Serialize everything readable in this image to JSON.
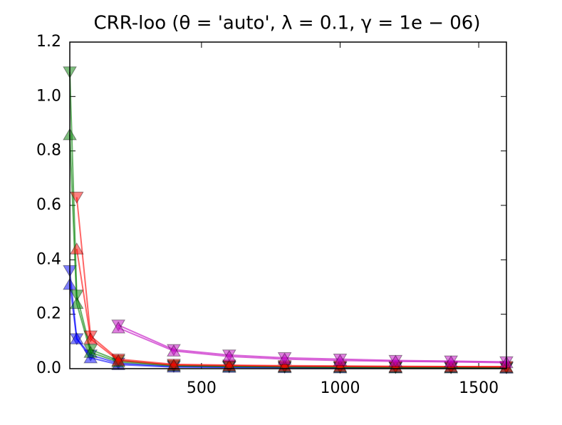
{
  "chart_data": {
    "type": "line",
    "title": "CRR-loo (θ = 'auto', λ = 0.1, γ = 1e − 06)",
    "x": [
      25,
      50,
      100,
      200,
      400,
      600,
      800,
      1000,
      1200,
      1400,
      1600
    ],
    "xlim": [
      25,
      1600
    ],
    "xticks": [
      500,
      1000,
      1500
    ],
    "ylim": [
      0,
      1.2
    ],
    "yticks": [
      {
        "value": 0,
        "label": "0.0"
      },
      0.2,
      0.4,
      0.6,
      0.8,
      {
        "value": 1,
        "label": "1.0"
      },
      1.2
    ],
    "series": [
      {
        "color": "#0000ff",
        "marker": "v",
        "values": [
          0.36,
          0.11,
          0.05,
          0.02,
          0.008,
          0.006,
          0.005,
          0.004,
          0.004,
          0.003,
          0.003
        ]
      },
      {
        "color": "#0000ff",
        "marker": "^",
        "values": [
          0.31,
          0.11,
          0.04,
          0.015,
          0.006,
          0.005,
          0.004,
          0.003,
          0.003,
          0.003,
          0.002
        ]
      },
      {
        "color": "#008000",
        "marker": "v",
        "values": [
          1.09,
          0.27,
          0.07,
          0.03,
          0.012,
          0.009,
          0.007,
          0.006,
          0.005,
          0.005,
          0.004
        ]
      },
      {
        "color": "#008000",
        "marker": "^",
        "values": [
          0.86,
          0.24,
          0.06,
          0.025,
          0.01,
          0.008,
          0.006,
          0.005,
          0.004,
          0.004,
          0.004
        ]
      },
      {
        "color": "#ff0000",
        "marker": "v",
        "values": [
          null,
          0.63,
          0.12,
          0.035,
          0.016,
          0.013,
          0.011,
          0.01,
          0.009,
          0.008,
          0.008
        ]
      },
      {
        "color": "#ff0000",
        "marker": "^",
        "values": [
          null,
          0.44,
          0.11,
          0.03,
          0.013,
          0.011,
          0.009,
          0.008,
          0.007,
          0.007,
          0.006
        ]
      },
      {
        "color": "#bf00bf",
        "marker": "v",
        "values": [
          null,
          null,
          null,
          0.16,
          0.07,
          0.05,
          0.04,
          0.035,
          0.03,
          0.028,
          0.025
        ]
      },
      {
        "color": "#bf00bf",
        "marker": "^",
        "values": [
          null,
          null,
          null,
          0.15,
          0.065,
          0.045,
          0.035,
          0.03,
          0.027,
          0.025,
          0.022
        ]
      }
    ]
  }
}
